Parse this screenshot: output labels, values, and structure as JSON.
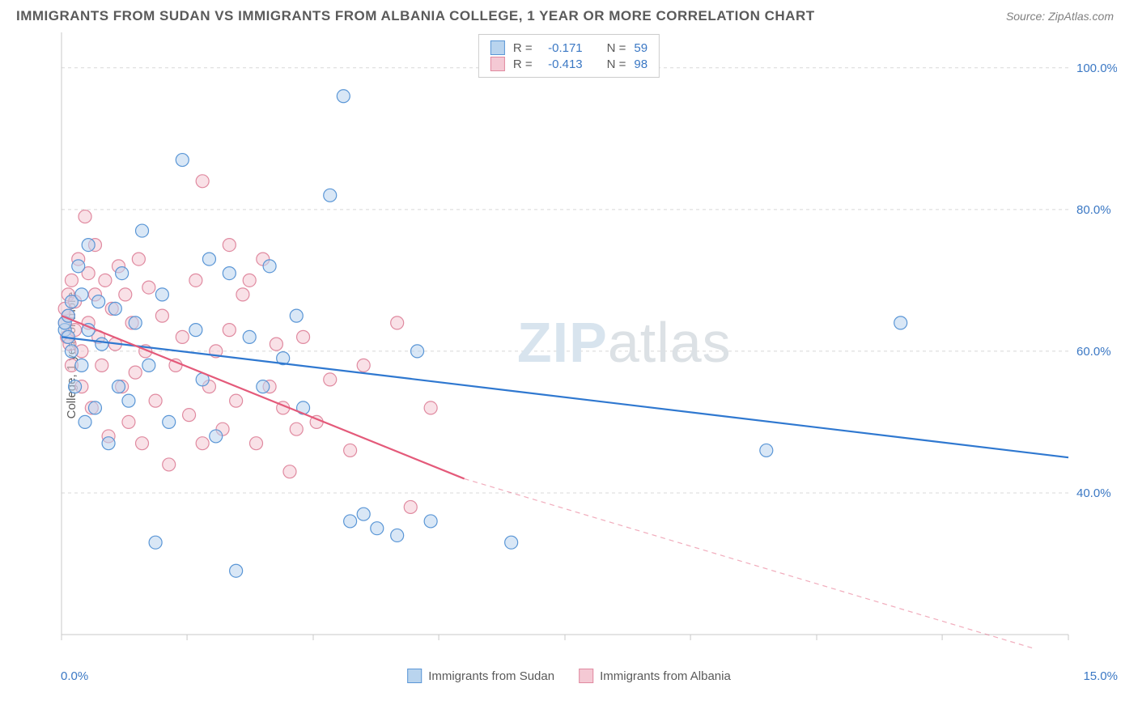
{
  "title": "IMMIGRANTS FROM SUDAN VS IMMIGRANTS FROM ALBANIA COLLEGE, 1 YEAR OR MORE CORRELATION CHART",
  "source": "Source: ZipAtlas.com",
  "ylabel": "College, 1 year or more",
  "watermark_a": "ZIP",
  "watermark_b": "atlas",
  "chart": {
    "type": "scatter",
    "xlim": [
      0,
      15
    ],
    "ylim": [
      20,
      105
    ],
    "xtick_positions": [
      0,
      1.87,
      3.75,
      5.62,
      7.5,
      9.37,
      11.25,
      13.12,
      15
    ],
    "ytick_positions": [
      40,
      60,
      80,
      100
    ],
    "ytick_labels": [
      "40.0%",
      "60.0%",
      "80.0%",
      "100.0%"
    ],
    "xmin_label": "0.0%",
    "xmax_label": "15.0%",
    "grid_color": "#d8d8d8",
    "axis_color": "#c8c8c8",
    "tick_label_color": "#3b78c4",
    "background": "#ffffff",
    "marker_radius": 8,
    "marker_stroke_width": 1.2,
    "series": [
      {
        "name": "Immigrants from Sudan",
        "fill": "#b9d4ee",
        "stroke": "#5a96d6",
        "fill_opacity": 0.55,
        "R": "-0.171",
        "N": "59",
        "trend": {
          "x1": 0,
          "y1": 62,
          "x2": 15,
          "y2": 45,
          "color": "#2f78d0",
          "width": 2.2,
          "dash_after_x": 15
        },
        "points": [
          [
            0.05,
            63
          ],
          [
            0.05,
            64
          ],
          [
            0.1,
            62
          ],
          [
            0.1,
            65
          ],
          [
            0.15,
            67
          ],
          [
            0.15,
            60
          ],
          [
            0.2,
            55
          ],
          [
            0.25,
            72
          ],
          [
            0.3,
            68
          ],
          [
            0.3,
            58
          ],
          [
            0.35,
            50
          ],
          [
            0.4,
            75
          ],
          [
            0.4,
            63
          ],
          [
            0.5,
            52
          ],
          [
            0.55,
            67
          ],
          [
            0.6,
            61
          ],
          [
            0.7,
            47
          ],
          [
            0.8,
            66
          ],
          [
            0.85,
            55
          ],
          [
            0.9,
            71
          ],
          [
            1.0,
            53
          ],
          [
            1.1,
            64
          ],
          [
            1.2,
            77
          ],
          [
            1.3,
            58
          ],
          [
            1.4,
            33
          ],
          [
            1.5,
            68
          ],
          [
            1.6,
            50
          ],
          [
            1.8,
            87
          ],
          [
            2.0,
            63
          ],
          [
            2.1,
            56
          ],
          [
            2.2,
            73
          ],
          [
            2.3,
            48
          ],
          [
            2.5,
            71
          ],
          [
            2.6,
            29
          ],
          [
            2.8,
            62
          ],
          [
            3.0,
            55
          ],
          [
            3.1,
            72
          ],
          [
            3.3,
            59
          ],
          [
            3.5,
            65
          ],
          [
            3.6,
            52
          ],
          [
            4.0,
            82
          ],
          [
            4.2,
            96
          ],
          [
            4.3,
            36
          ],
          [
            4.5,
            37
          ],
          [
            4.7,
            35
          ],
          [
            5.0,
            34
          ],
          [
            5.3,
            60
          ],
          [
            5.5,
            36
          ],
          [
            6.7,
            33
          ],
          [
            10.5,
            46
          ],
          [
            12.5,
            64
          ]
        ]
      },
      {
        "name": "Immigrants from Albania",
        "fill": "#f4c9d4",
        "stroke": "#e08aa0",
        "fill_opacity": 0.55,
        "R": "-0.413",
        "N": "98",
        "trend": {
          "x1": 0,
          "y1": 65,
          "x2": 6.0,
          "y2": 42,
          "color": "#e45a7a",
          "width": 2.2,
          "dash_after_x": 6.0,
          "dash_x2": 14.5,
          "dash_y2": 18
        },
        "points": [
          [
            0.05,
            64
          ],
          [
            0.05,
            66
          ],
          [
            0.08,
            62
          ],
          [
            0.1,
            65
          ],
          [
            0.1,
            68
          ],
          [
            0.12,
            61
          ],
          [
            0.15,
            70
          ],
          [
            0.15,
            58
          ],
          [
            0.2,
            67
          ],
          [
            0.2,
            63
          ],
          [
            0.25,
            73
          ],
          [
            0.3,
            60
          ],
          [
            0.3,
            55
          ],
          [
            0.35,
            79
          ],
          [
            0.4,
            64
          ],
          [
            0.4,
            71
          ],
          [
            0.45,
            52
          ],
          [
            0.5,
            68
          ],
          [
            0.5,
            75
          ],
          [
            0.55,
            62
          ],
          [
            0.6,
            58
          ],
          [
            0.65,
            70
          ],
          [
            0.7,
            48
          ],
          [
            0.75,
            66
          ],
          [
            0.8,
            61
          ],
          [
            0.85,
            72
          ],
          [
            0.9,
            55
          ],
          [
            0.95,
            68
          ],
          [
            1.0,
            50
          ],
          [
            1.05,
            64
          ],
          [
            1.1,
            57
          ],
          [
            1.15,
            73
          ],
          [
            1.2,
            47
          ],
          [
            1.25,
            60
          ],
          [
            1.3,
            69
          ],
          [
            1.4,
            53
          ],
          [
            1.5,
            65
          ],
          [
            1.6,
            44
          ],
          [
            1.7,
            58
          ],
          [
            1.8,
            62
          ],
          [
            1.9,
            51
          ],
          [
            2.0,
            70
          ],
          [
            2.1,
            47
          ],
          [
            2.1,
            84
          ],
          [
            2.2,
            55
          ],
          [
            2.3,
            60
          ],
          [
            2.4,
            49
          ],
          [
            2.5,
            63
          ],
          [
            2.5,
            75
          ],
          [
            2.6,
            53
          ],
          [
            2.7,
            68
          ],
          [
            2.8,
            70
          ],
          [
            2.9,
            47
          ],
          [
            3.0,
            73
          ],
          [
            3.1,
            55
          ],
          [
            3.2,
            61
          ],
          [
            3.3,
            52
          ],
          [
            3.4,
            43
          ],
          [
            3.5,
            49
          ],
          [
            3.6,
            62
          ],
          [
            3.8,
            50
          ],
          [
            4.0,
            56
          ],
          [
            4.3,
            46
          ],
          [
            4.5,
            58
          ],
          [
            5.0,
            64
          ],
          [
            5.2,
            38
          ],
          [
            5.5,
            52
          ]
        ]
      }
    ]
  },
  "stats_box": {
    "rows": [
      {
        "swatch_fill": "#b9d4ee",
        "swatch_stroke": "#5a96d6",
        "R_label": "R =",
        "R_val": "-0.171",
        "N_label": "N =",
        "N_val": "59",
        "val_color": "#3b78c4"
      },
      {
        "swatch_fill": "#f4c9d4",
        "swatch_stroke": "#e08aa0",
        "R_label": "R =",
        "R_val": "-0.413",
        "N_label": "N =",
        "N_val": "98",
        "val_color": "#3b78c4"
      }
    ]
  },
  "legend": [
    {
      "swatch_fill": "#b9d4ee",
      "swatch_stroke": "#5a96d6",
      "label": "Immigrants from Sudan"
    },
    {
      "swatch_fill": "#f4c9d4",
      "swatch_stroke": "#e08aa0",
      "label": "Immigrants from Albania"
    }
  ]
}
